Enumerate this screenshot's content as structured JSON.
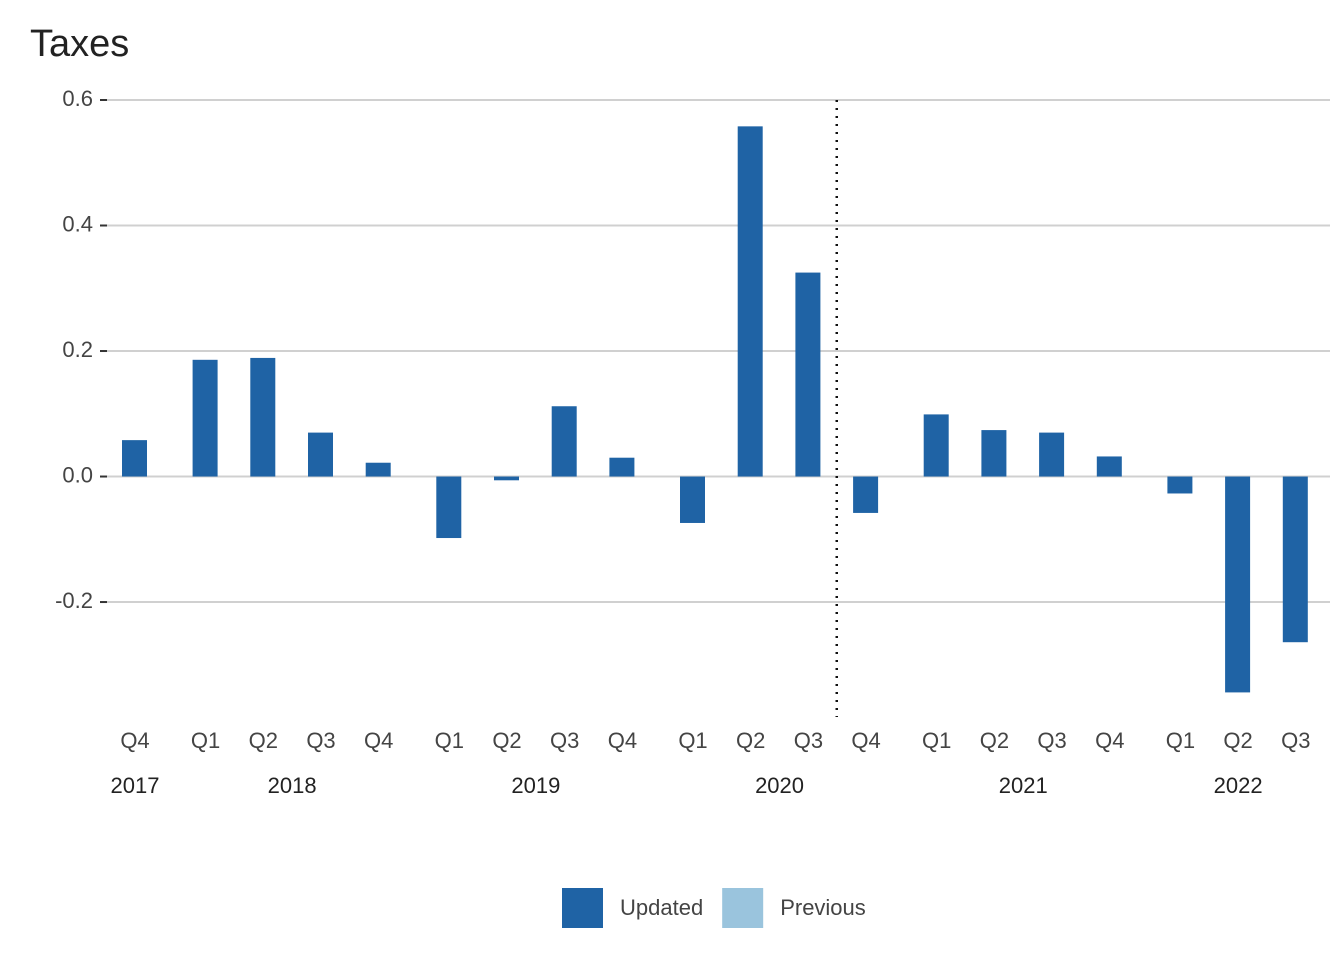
{
  "chart_data": {
    "type": "bar",
    "title": "Taxes",
    "groups": [
      {
        "label": "2017",
        "quarters": [
          "Q4"
        ]
      },
      {
        "label": "2018",
        "quarters": [
          "Q1",
          "Q2",
          "Q3",
          "Q4"
        ]
      },
      {
        "label": "2019",
        "quarters": [
          "Q1",
          "Q2",
          "Q3",
          "Q4"
        ]
      },
      {
        "label": "2020",
        "quarters": [
          "Q1",
          "Q2",
          "Q3",
          "Q4"
        ]
      },
      {
        "label": "2021",
        "quarters": [
          "Q1",
          "Q2",
          "Q3",
          "Q4"
        ]
      },
      {
        "label": "2022",
        "quarters": [
          "Q1",
          "Q2",
          "Q3"
        ]
      }
    ],
    "series": [
      {
        "name": "Updated",
        "color": "#1f63a5",
        "values": [
          0.058,
          0.186,
          0.189,
          0.07,
          0.022,
          -0.098,
          -0.006,
          0.112,
          0.03,
          -0.074,
          0.558,
          0.325,
          -0.058,
          0.099,
          0.074,
          0.07,
          0.032,
          -0.027,
          -0.344,
          -0.264
        ]
      },
      {
        "name": "Previous",
        "color": "#9ac4dd",
        "values": [
          null,
          null,
          null,
          null,
          null,
          null,
          null,
          null,
          null,
          null,
          null,
          null,
          null,
          null,
          null,
          null,
          null,
          null,
          null,
          null
        ]
      }
    ],
    "ylim": [
      -0.38,
      0.6
    ],
    "yticks": [
      -0.2,
      {
        "value": 0,
        "label": "0.0"
      },
      0.2,
      0.4,
      0.6
    ],
    "grid": true,
    "divider_before": 12,
    "legend": "bottom"
  }
}
